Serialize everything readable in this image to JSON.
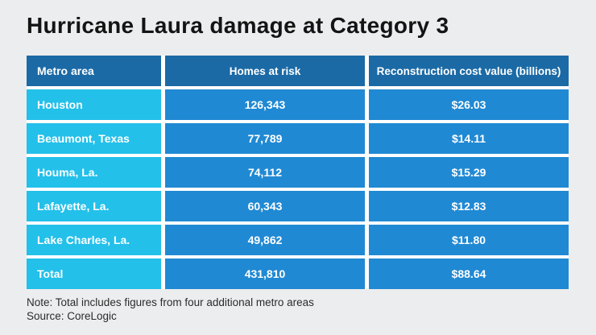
{
  "title": "Hurricane Laura damage at Category 3",
  "chart_data": {
    "type": "table",
    "title": "Hurricane Laura damage at Category 3",
    "columns": [
      "Metro area",
      "Homes at risk",
      "Reconstruction cost value (billions)"
    ],
    "rows": [
      [
        "Houston",
        "126,343",
        "$26.03"
      ],
      [
        "Beaumont, Texas",
        "77,789",
        "$14.11"
      ],
      [
        "Houma, La.",
        "74,112",
        "$15.29"
      ],
      [
        "Lafayette, La.",
        "60,343",
        "$12.83"
      ],
      [
        "Lake Charles, La.",
        "49,862",
        "$11.80"
      ],
      [
        "Total",
        "431,810",
        "$88.64"
      ]
    ],
    "homes_at_risk_numeric": [
      126343,
      77789,
      74112,
      60343,
      49862,
      431810
    ],
    "cost_billions_numeric": [
      26.03,
      14.11,
      15.29,
      12.83,
      11.8,
      88.64
    ],
    "note": "Note: Total includes figures from four additional metro areas",
    "source": "Source: CoreLogic"
  },
  "footer": {
    "note": "Note: Total includes figures from four additional metro areas",
    "source": "Source: CoreLogic"
  },
  "colors": {
    "page_bg": "#ecedee",
    "header_bg": "#1b6aa5",
    "metro_col_bg": "#23c0ea",
    "value_col_bg": "#2089d3",
    "cell_text": "#ffffff",
    "title_text": "#141414",
    "footer_text": "#2b2b2b",
    "grid_gap": "#ffffff"
  }
}
